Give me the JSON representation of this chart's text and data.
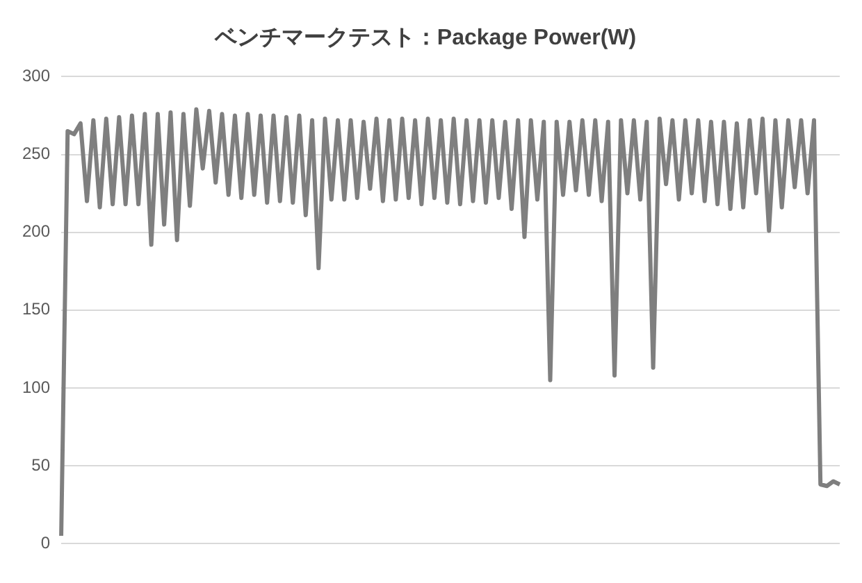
{
  "chart_data": {
    "type": "line",
    "title": "ベンチマークテスト：Package Power(W)",
    "categories": [
      null,
      null,
      null,
      null,
      null,
      null,
      null,
      null,
      null,
      null,
      null,
      null,
      null,
      null,
      null,
      null,
      null,
      null,
      null,
      null,
      null,
      null,
      null,
      null,
      null,
      null,
      null,
      null,
      null,
      null,
      null,
      null,
      null,
      null,
      null,
      null,
      null,
      null,
      null,
      null,
      null,
      null,
      null,
      null,
      null,
      null,
      null,
      null,
      null,
      null,
      null,
      null,
      null,
      null,
      null,
      null,
      null,
      null,
      null,
      null,
      null,
      null,
      null,
      null,
      null,
      null,
      null,
      null,
      null,
      null,
      null,
      null,
      null,
      null,
      null,
      null,
      null,
      null,
      null,
      null,
      null,
      null,
      null,
      null,
      null,
      null,
      null,
      null,
      null,
      null,
      null,
      null,
      null,
      null,
      null,
      null,
      null,
      null,
      null,
      null,
      null,
      null,
      null,
      null,
      null,
      null,
      null,
      null,
      null,
      null,
      null,
      null,
      null,
      null,
      null,
      null,
      null,
      null,
      null,
      null,
      null,
      null
    ],
    "values": [
      5,
      265,
      263,
      270,
      220,
      272,
      216,
      273,
      218,
      274,
      218,
      275,
      218,
      276,
      192,
      276,
      205,
      277,
      195,
      276,
      217,
      279,
      241,
      278,
      232,
      276,
      224,
      275,
      222,
      276,
      224,
      275,
      219,
      275,
      220,
      274,
      219,
      275,
      211,
      272,
      177,
      273,
      221,
      272,
      221,
      272,
      222,
      271,
      228,
      273,
      220,
      272,
      221,
      273,
      222,
      272,
      218,
      273,
      222,
      272,
      219,
      273,
      218,
      272,
      220,
      272,
      219,
      272,
      222,
      271,
      215,
      272,
      197,
      272,
      221,
      271,
      105,
      271,
      224,
      271,
      227,
      272,
      224,
      272,
      220,
      271,
      108,
      272,
      225,
      272,
      221,
      271,
      113,
      273,
      231,
      272,
      221,
      272,
      225,
      272,
      220,
      271,
      218,
      271,
      215,
      270,
      216,
      272,
      225,
      273,
      201,
      272,
      216,
      272,
      229,
      272,
      225,
      272,
      38,
      37,
      40,
      38
    ],
    "color": "#7f7f7f",
    "ylim": [
      0,
      300
    ],
    "yticks": [
      0,
      50,
      100,
      150,
      200,
      250,
      300
    ],
    "grid": "y",
    "legend": false,
    "marker": "none",
    "line_style": "solid"
  }
}
